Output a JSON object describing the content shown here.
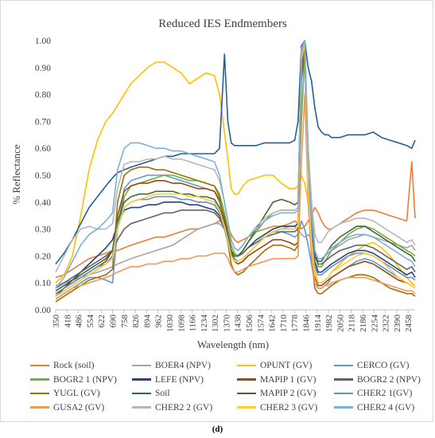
{
  "chart_data": {
    "type": "line",
    "title": "Reduced IES Endmembers",
    "xlabel": "Wavelength (nm)",
    "ylabel": "% Reflectance",
    "ylim": [
      0,
      1
    ],
    "xlim": [
      350,
      2500
    ],
    "yticks": [
      "0.00",
      "0.10",
      "0.20",
      "0.30",
      "0.40",
      "0.50",
      "0.60",
      "0.70",
      "0.80",
      "0.90",
      "1.00"
    ],
    "xticks": [
      "350",
      "418",
      "486",
      "554",
      "622",
      "690",
      "758",
      "826",
      "894",
      "962",
      "1030",
      "1098",
      "1166",
      "1234",
      "1302",
      "1370",
      "1438",
      "1506",
      "1574",
      "1642",
      "1710",
      "1778",
      "1846",
      "1914",
      "1982",
      "2050",
      "2118",
      "2186",
      "2254",
      "2322",
      "2390",
      "2458"
    ],
    "grid": false,
    "legend_position": "bottom",
    "x": [
      350,
      400,
      450,
      500,
      550,
      600,
      650,
      690,
      720,
      760,
      800,
      850,
      900,
      950,
      1000,
      1050,
      1100,
      1150,
      1200,
      1250,
      1300,
      1330,
      1360,
      1380,
      1400,
      1420,
      1440,
      1470,
      1500,
      1550,
      1600,
      1650,
      1700,
      1750,
      1780,
      1800,
      1820,
      1840,
      1860,
      1880,
      1900,
      1920,
      1940,
      1960,
      1980,
      2000,
      2050,
      2100,
      2150,
      2200,
      2250,
      2300,
      2350,
      2400,
      2450,
      2480,
      2500
    ],
    "series": [
      {
        "name": "Rock (soil)",
        "color": "#ed7d31",
        "values": [
          0.12,
          0.13,
          0.15,
          0.17,
          0.19,
          0.2,
          0.21,
          0.22,
          0.22,
          0.23,
          0.24,
          0.25,
          0.26,
          0.27,
          0.27,
          0.28,
          0.29,
          0.3,
          0.3,
          0.31,
          0.32,
          0.33,
          0.33,
          0.31,
          0.28,
          0.26,
          0.25,
          0.26,
          0.27,
          0.29,
          0.3,
          0.31,
          0.31,
          0.32,
          0.33,
          0.32,
          0.3,
          0.31,
          0.33,
          0.35,
          0.38,
          0.36,
          0.33,
          0.31,
          0.3,
          0.3,
          0.32,
          0.34,
          0.36,
          0.37,
          0.37,
          0.36,
          0.35,
          0.34,
          0.33,
          0.55,
          0.34
        ]
      },
      {
        "name": "BOER4 (NPV)",
        "color": "#a5a5a5",
        "values": [
          0.09,
          0.1,
          0.11,
          0.12,
          0.13,
          0.14,
          0.15,
          0.16,
          0.17,
          0.18,
          0.19,
          0.2,
          0.21,
          0.22,
          0.23,
          0.24,
          0.26,
          0.28,
          0.3,
          0.31,
          0.32,
          0.32,
          0.3,
          0.27,
          0.22,
          0.2,
          0.2,
          0.21,
          0.23,
          0.25,
          0.27,
          0.29,
          0.3,
          0.31,
          0.31,
          0.3,
          0.28,
          0.27,
          0.28,
          0.26,
          0.21,
          0.19,
          0.19,
          0.2,
          0.21,
          0.22,
          0.24,
          0.26,
          0.27,
          0.28,
          0.27,
          0.26,
          0.25,
          0.24,
          0.23,
          0.24,
          0.22
        ]
      },
      {
        "name": "OPUNT (GV)",
        "color": "#ffc000",
        "values": [
          0.1,
          0.13,
          0.2,
          0.35,
          0.52,
          0.63,
          0.7,
          0.73,
          0.76,
          0.8,
          0.84,
          0.87,
          0.9,
          0.92,
          0.92,
          0.9,
          0.88,
          0.84,
          0.86,
          0.88,
          0.87,
          0.8,
          0.66,
          0.56,
          0.45,
          0.43,
          0.43,
          0.46,
          0.48,
          0.49,
          0.5,
          0.5,
          0.47,
          0.45,
          0.45,
          0.46,
          0.5,
          0.47,
          0.4,
          0.3,
          0.15,
          0.1,
          0.1,
          0.11,
          0.12,
          0.14,
          0.17,
          0.2,
          0.22,
          0.24,
          0.25,
          0.23,
          0.2,
          0.16,
          0.12,
          0.1,
          0.09
        ]
      },
      {
        "name": "CERCO (GV)",
        "color": "#5b9bd5",
        "values": [
          0.04,
          0.06,
          0.08,
          0.1,
          0.12,
          0.12,
          0.11,
          0.1,
          0.3,
          0.45,
          0.48,
          0.49,
          0.5,
          0.5,
          0.5,
          0.49,
          0.48,
          0.47,
          0.46,
          0.45,
          0.44,
          0.4,
          0.33,
          0.28,
          0.22,
          0.19,
          0.18,
          0.19,
          0.21,
          0.24,
          0.27,
          0.29,
          0.29,
          0.28,
          0.27,
          0.28,
          0.33,
          0.3,
          0.24,
          0.17,
          0.1,
          0.08,
          0.08,
          0.09,
          0.1,
          0.12,
          0.14,
          0.16,
          0.18,
          0.19,
          0.18,
          0.16,
          0.14,
          0.12,
          0.1,
          0.09,
          0.08
        ]
      },
      {
        "name": "BOGR2 1 (NPV)",
        "color": "#70ad47",
        "values": [
          0.05,
          0.07,
          0.09,
          0.11,
          0.13,
          0.15,
          0.17,
          0.2,
          0.3,
          0.42,
          0.46,
          0.47,
          0.48,
          0.49,
          0.5,
          0.5,
          0.49,
          0.48,
          0.48,
          0.47,
          0.46,
          0.43,
          0.36,
          0.3,
          0.24,
          0.21,
          0.2,
          0.22,
          0.25,
          0.29,
          0.33,
          0.36,
          0.37,
          0.37,
          0.37,
          0.38,
          0.7,
          0.95,
          0.6,
          0.4,
          0.22,
          0.16,
          0.16,
          0.18,
          0.2,
          0.22,
          0.25,
          0.28,
          0.3,
          0.31,
          0.3,
          0.28,
          0.26,
          0.24,
          0.22,
          0.21,
          0.2
        ]
      },
      {
        "name": "LEFE (NPV)",
        "color": "#264478",
        "values": [
          0.05,
          0.08,
          0.11,
          0.14,
          0.17,
          0.2,
          0.23,
          0.26,
          0.32,
          0.37,
          0.38,
          0.38,
          0.39,
          0.39,
          0.4,
          0.4,
          0.4,
          0.39,
          0.39,
          0.38,
          0.37,
          0.35,
          0.3,
          0.26,
          0.22,
          0.2,
          0.2,
          0.21,
          0.23,
          0.26,
          0.28,
          0.3,
          0.31,
          0.31,
          0.31,
          0.32,
          0.98,
          1.0,
          0.5,
          0.3,
          0.18,
          0.14,
          0.14,
          0.15,
          0.16,
          0.17,
          0.19,
          0.21,
          0.22,
          0.22,
          0.21,
          0.19,
          0.17,
          0.15,
          0.13,
          0.14,
          0.12
        ]
      },
      {
        "name": "MAPIP 1 (GV)",
        "color": "#9e480e",
        "values": [
          0.06,
          0.08,
          0.1,
          0.12,
          0.14,
          0.16,
          0.18,
          0.22,
          0.35,
          0.44,
          0.46,
          0.47,
          0.47,
          0.48,
          0.48,
          0.47,
          0.47,
          0.46,
          0.45,
          0.45,
          0.44,
          0.41,
          0.34,
          0.28,
          0.21,
          0.18,
          0.17,
          0.18,
          0.2,
          0.22,
          0.24,
          0.26,
          0.26,
          0.25,
          0.24,
          0.25,
          0.9,
          0.98,
          0.45,
          0.25,
          0.12,
          0.09,
          0.09,
          0.1,
          0.11,
          0.12,
          0.14,
          0.16,
          0.17,
          0.18,
          0.17,
          0.15,
          0.13,
          0.11,
          0.1,
          0.09,
          0.08
        ]
      },
      {
        "name": "BOGR2 2 (NPV)",
        "color": "#636363",
        "values": [
          0.08,
          0.1,
          0.12,
          0.14,
          0.16,
          0.18,
          0.2,
          0.22,
          0.26,
          0.3,
          0.32,
          0.33,
          0.34,
          0.35,
          0.36,
          0.36,
          0.37,
          0.37,
          0.37,
          0.37,
          0.36,
          0.34,
          0.3,
          0.26,
          0.22,
          0.2,
          0.2,
          0.21,
          0.23,
          0.25,
          0.27,
          0.28,
          0.29,
          0.29,
          0.29,
          0.3,
          0.85,
          0.96,
          0.55,
          0.32,
          0.2,
          0.17,
          0.17,
          0.18,
          0.19,
          0.2,
          0.22,
          0.23,
          0.24,
          0.24,
          0.23,
          0.21,
          0.19,
          0.17,
          0.15,
          0.16,
          0.14
        ]
      },
      {
        "name": "YUGL (GV)",
        "color": "#997300",
        "values": [
          0.03,
          0.05,
          0.07,
          0.09,
          0.11,
          0.12,
          0.13,
          0.15,
          0.4,
          0.5,
          0.52,
          0.53,
          0.53,
          0.52,
          0.52,
          0.51,
          0.5,
          0.49,
          0.48,
          0.47,
          0.46,
          0.42,
          0.32,
          0.25,
          0.17,
          0.14,
          0.13,
          0.14,
          0.16,
          0.19,
          0.22,
          0.24,
          0.24,
          0.23,
          0.22,
          0.24,
          0.88,
          0.95,
          0.4,
          0.2,
          0.08,
          0.06,
          0.06,
          0.07,
          0.08,
          0.09,
          0.11,
          0.12,
          0.13,
          0.13,
          0.12,
          0.1,
          0.08,
          0.07,
          0.06,
          0.06,
          0.05
        ]
      },
      {
        "name": "Soil",
        "color": "#255e91",
        "values": [
          0.17,
          0.21,
          0.26,
          0.32,
          0.38,
          0.42,
          0.46,
          0.49,
          0.51,
          0.52,
          0.53,
          0.54,
          0.55,
          0.56,
          0.57,
          0.57,
          0.58,
          0.58,
          0.58,
          0.58,
          0.58,
          0.6,
          0.95,
          0.7,
          0.62,
          0.61,
          0.61,
          0.61,
          0.61,
          0.61,
          0.62,
          0.62,
          0.62,
          0.62,
          0.63,
          0.7,
          0.98,
          1.0,
          0.9,
          0.85,
          0.75,
          0.68,
          0.66,
          0.65,
          0.65,
          0.64,
          0.64,
          0.65,
          0.65,
          0.65,
          0.66,
          0.64,
          0.63,
          0.62,
          0.61,
          0.6,
          0.63
        ]
      },
      {
        "name": "MAPIP 2 (GV)",
        "color": "#43682b",
        "values": [
          0.07,
          0.09,
          0.11,
          0.13,
          0.15,
          0.17,
          0.19,
          0.22,
          0.33,
          0.4,
          0.42,
          0.43,
          0.43,
          0.44,
          0.44,
          0.44,
          0.43,
          0.43,
          0.42,
          0.42,
          0.41,
          0.38,
          0.32,
          0.27,
          0.22,
          0.2,
          0.2,
          0.22,
          0.25,
          0.3,
          0.35,
          0.4,
          0.41,
          0.4,
          0.39,
          0.4,
          0.95,
          1.0,
          0.5,
          0.3,
          0.2,
          0.18,
          0.18,
          0.2,
          0.22,
          0.24,
          0.27,
          0.29,
          0.31,
          0.31,
          0.29,
          0.27,
          0.25,
          0.23,
          0.21,
          0.2,
          0.18
        ]
      },
      {
        "name": "CHER2 1(GV)",
        "color": "#698ed0",
        "values": [
          0.06,
          0.08,
          0.1,
          0.12,
          0.14,
          0.16,
          0.17,
          0.2,
          0.32,
          0.38,
          0.4,
          0.41,
          0.41,
          0.42,
          0.42,
          0.42,
          0.41,
          0.41,
          0.4,
          0.4,
          0.39,
          0.36,
          0.3,
          0.25,
          0.2,
          0.18,
          0.18,
          0.19,
          0.21,
          0.24,
          0.27,
          0.29,
          0.3,
          0.3,
          0.3,
          0.31,
          0.92,
          0.99,
          0.48,
          0.28,
          0.16,
          0.13,
          0.13,
          0.14,
          0.15,
          0.16,
          0.18,
          0.2,
          0.21,
          0.21,
          0.2,
          0.18,
          0.16,
          0.14,
          0.12,
          0.12,
          0.11
        ]
      },
      {
        "name": "GUSA2 (GV)",
        "color": "#f1975a",
        "values": [
          0.04,
          0.06,
          0.08,
          0.09,
          0.1,
          0.11,
          0.12,
          0.13,
          0.14,
          0.15,
          0.16,
          0.16,
          0.17,
          0.17,
          0.18,
          0.18,
          0.19,
          0.19,
          0.2,
          0.2,
          0.21,
          0.21,
          0.21,
          0.19,
          0.16,
          0.14,
          0.14,
          0.15,
          0.16,
          0.17,
          0.18,
          0.19,
          0.19,
          0.19,
          0.19,
          0.2,
          0.55,
          0.8,
          0.4,
          0.2,
          0.1,
          0.08,
          0.08,
          0.09,
          0.09,
          0.1,
          0.11,
          0.12,
          0.12,
          0.12,
          0.11,
          0.1,
          0.09,
          0.08,
          0.07,
          0.07,
          0.06
        ]
      },
      {
        "name": "CHER2 2 (GV)",
        "color": "#b7b7b7",
        "values": [
          0.14,
          0.2,
          0.26,
          0.3,
          0.31,
          0.3,
          0.3,
          0.32,
          0.45,
          0.54,
          0.55,
          0.55,
          0.56,
          0.56,
          0.57,
          0.56,
          0.56,
          0.55,
          0.54,
          0.53,
          0.52,
          0.48,
          0.4,
          0.33,
          0.26,
          0.23,
          0.22,
          0.24,
          0.27,
          0.31,
          0.34,
          0.36,
          0.37,
          0.37,
          0.37,
          0.38,
          0.97,
          1.0,
          0.6,
          0.4,
          0.28,
          0.25,
          0.25,
          0.27,
          0.29,
          0.3,
          0.32,
          0.33,
          0.34,
          0.34,
          0.33,
          0.31,
          0.29,
          0.27,
          0.25,
          0.26,
          0.24
        ]
      },
      {
        "name": "CHER2 3 (GV)",
        "color": "#ffcd33",
        "values": [
          0.05,
          0.07,
          0.09,
          0.11,
          0.13,
          0.15,
          0.17,
          0.19,
          0.3,
          0.38,
          0.4,
          0.41,
          0.42,
          0.43,
          0.43,
          0.43,
          0.43,
          0.42,
          0.42,
          0.41,
          0.4,
          0.37,
          0.31,
          0.26,
          0.2,
          0.18,
          0.18,
          0.19,
          0.21,
          0.24,
          0.27,
          0.29,
          0.3,
          0.3,
          0.3,
          0.31,
          0.93,
          0.99,
          0.45,
          0.25,
          0.13,
          0.1,
          0.1,
          0.11,
          0.12,
          0.14,
          0.16,
          0.18,
          0.2,
          0.21,
          0.2,
          0.18,
          0.15,
          0.12,
          0.1,
          0.09,
          0.08
        ]
      },
      {
        "name": "CHER2 4 (GV)",
        "color": "#7cafdd",
        "values": [
          0.08,
          0.12,
          0.18,
          0.24,
          0.28,
          0.3,
          0.33,
          0.36,
          0.52,
          0.6,
          0.62,
          0.62,
          0.61,
          0.6,
          0.6,
          0.59,
          0.59,
          0.58,
          0.57,
          0.56,
          0.55,
          0.5,
          0.4,
          0.33,
          0.26,
          0.23,
          0.22,
          0.24,
          0.27,
          0.3,
          0.33,
          0.35,
          0.36,
          0.36,
          0.36,
          0.37,
          0.96,
          1.0,
          0.55,
          0.35,
          0.22,
          0.19,
          0.19,
          0.2,
          0.22,
          0.23,
          0.25,
          0.27,
          0.28,
          0.28,
          0.27,
          0.25,
          0.23,
          0.21,
          0.19,
          0.18,
          0.16
        ]
      }
    ]
  },
  "figure": {
    "sublabel": "(d)"
  }
}
